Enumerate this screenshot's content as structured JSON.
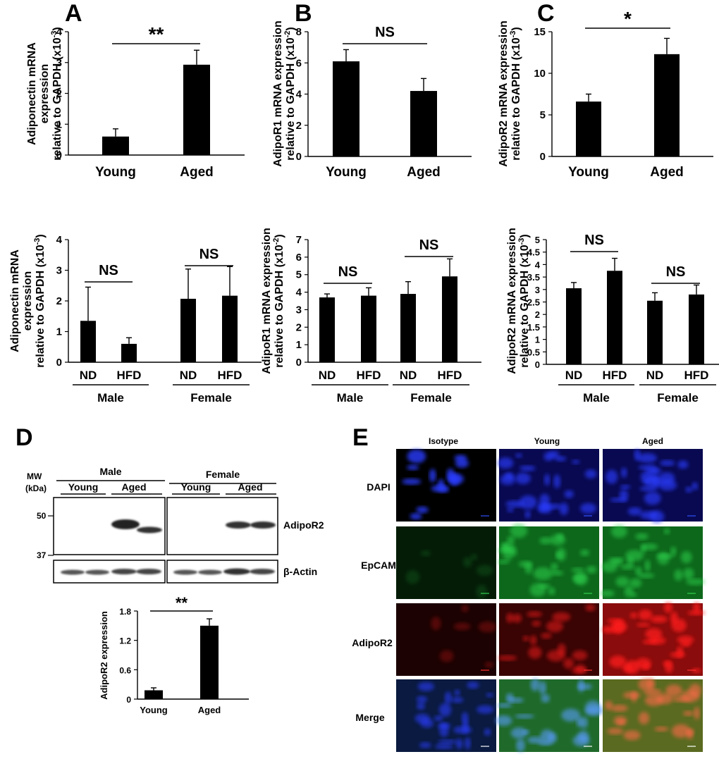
{
  "panel_letters": {
    "A": "A",
    "B": "B",
    "C": "C",
    "D": "D",
    "E": "E"
  },
  "colors": {
    "bar": "#000000",
    "dapi": "#1f5fd6",
    "epcam": "#22a846",
    "adipor2": "#e01818"
  },
  "chart_data": [
    {
      "id": "A1",
      "type": "bar",
      "categories": [
        "Young",
        "Aged"
      ],
      "values": [
        0.6,
        2.93
      ],
      "errors": [
        0.25,
        0.47
      ],
      "ylabel_lines": [
        "Adiponectin mRNA",
        "expression",
        "relative to GAPDH (x10",
        "-3",
        ")"
      ],
      "yticks": [
        "0",
        "1",
        "2",
        "3",
        "4"
      ],
      "ylim": [
        0,
        4
      ],
      "significance": "**"
    },
    {
      "id": "B1",
      "type": "bar",
      "categories": [
        "Young",
        "Aged"
      ],
      "values": [
        6.1,
        4.2
      ],
      "errors": [
        0.75,
        0.8
      ],
      "ylabel_lines": [
        "AdipoR1 mRNA expression",
        "relative to GAPDH (x10",
        "-2",
        ")"
      ],
      "yticks": [
        "0",
        "2",
        "4",
        "6",
        "8"
      ],
      "ylim": [
        0,
        8
      ],
      "significance": "NS"
    },
    {
      "id": "C1",
      "type": "bar",
      "categories": [
        "Young",
        "Aged"
      ],
      "values": [
        6.6,
        12.3
      ],
      "errors": [
        0.9,
        1.9
      ],
      "ylabel_lines": [
        "AdipoR2 mRNA expression",
        "relative to GAPDH (x10",
        "-3",
        ")"
      ],
      "yticks": [
        "0",
        "5",
        "10",
        "15"
      ],
      "ylim": [
        0,
        15
      ],
      "significance": "*"
    },
    {
      "id": "A2",
      "type": "bar",
      "categories": [
        "ND",
        "HFD",
        "ND",
        "HFD"
      ],
      "groups": [
        "Male",
        "Female"
      ],
      "values": [
        1.35,
        0.6,
        2.07,
        2.17
      ],
      "errors": [
        1.1,
        0.2,
        0.97,
        0.95
      ],
      "ylabel_lines": [
        "Adiponectin mRNA",
        "expression",
        "relative to GAPDH (x10",
        "-3",
        ")"
      ],
      "yticks": [
        "0",
        "1",
        "2",
        "3",
        "4"
      ],
      "ylim": [
        0,
        4
      ],
      "significance": [
        "NS",
        "NS"
      ]
    },
    {
      "id": "B2",
      "type": "bar",
      "categories": [
        "ND",
        "HFD",
        "ND",
        "HFD"
      ],
      "groups": [
        "Male",
        "Female"
      ],
      "values": [
        3.7,
        3.8,
        3.9,
        4.9
      ],
      "errors": [
        0.2,
        0.45,
        0.7,
        1.0
      ],
      "ylabel_lines": [
        "AdipoR1 mRNA expression",
        "relative to GAPDH (x10",
        "-2",
        ")"
      ],
      "yticks": [
        "0",
        "1",
        "2",
        "3",
        "4",
        "5",
        "6",
        "7"
      ],
      "ylim": [
        0,
        7
      ],
      "significance": [
        "NS",
        "NS"
      ]
    },
    {
      "id": "C2",
      "type": "bar",
      "categories": [
        "ND",
        "HFD",
        "ND",
        "HFD"
      ],
      "groups": [
        "Male",
        "Female"
      ],
      "values": [
        3.05,
        3.75,
        2.55,
        2.8
      ],
      "errors": [
        0.23,
        0.5,
        0.32,
        0.38
      ],
      "ylabel_lines": [
        "AdipoR2 mRNA expression",
        "relative to GAPDH (x10",
        "-3",
        ")"
      ],
      "yticks": [
        "0",
        "0.5",
        "1",
        "1.5",
        "2",
        "2.5",
        "3",
        "3.5",
        "4",
        "4.5",
        "5"
      ],
      "ylim": [
        0,
        5
      ],
      "significance": [
        "NS",
        "NS"
      ]
    },
    {
      "id": "D",
      "type": "bar",
      "categories": [
        "Young",
        "Aged"
      ],
      "values": [
        0.18,
        1.5
      ],
      "errors": [
        0.05,
        0.14
      ],
      "ylabel": "AdipoR2 expression",
      "yticks": [
        "0",
        "0.6",
        "1.2",
        "1.8"
      ],
      "ylim": [
        0,
        1.8
      ],
      "significance": "**"
    }
  ],
  "blot": {
    "mw_label_lines": [
      "MW",
      "(kDa)"
    ],
    "mw_markers": [
      "50",
      "37"
    ],
    "groups": [
      "Male",
      "Female"
    ],
    "lanes": [
      "Young",
      "Aged",
      "Young",
      "Aged"
    ],
    "proteins": [
      "AdipoR2",
      "β-Actin"
    ]
  },
  "micro": {
    "columns": [
      "Isotype",
      "Young",
      "Aged"
    ],
    "rows": [
      "DAPI",
      "EpCAM",
      "AdipoR2",
      "Merge"
    ]
  }
}
